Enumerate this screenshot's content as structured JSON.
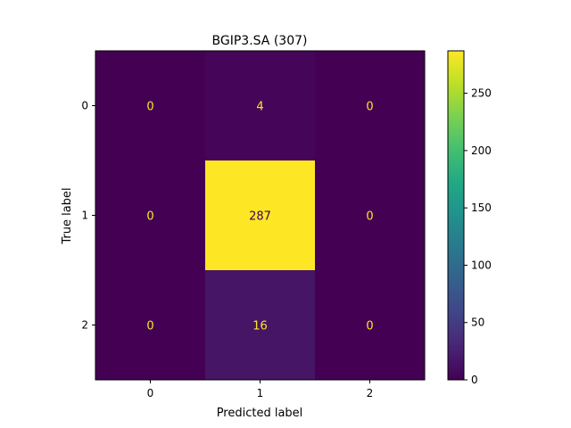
{
  "chart_data": {
    "type": "heatmap",
    "title": "BGIP3.SA (307)",
    "xlabel": "Predicted label",
    "ylabel": "True label",
    "x_categories": [
      "0",
      "1",
      "2"
    ],
    "y_categories": [
      "0",
      "1",
      "2"
    ],
    "values": [
      [
        0,
        4,
        0
      ],
      [
        0,
        287,
        0
      ],
      [
        0,
        16,
        0
      ]
    ],
    "colormap": "viridis",
    "colorbar": {
      "ticks": [
        0,
        50,
        100,
        150,
        200,
        250
      ],
      "tick_labels": [
        "0",
        "50",
        "100",
        "150",
        "200",
        "250"
      ],
      "range": [
        0,
        287
      ]
    },
    "low_text_color": "#fde725",
    "high_text_color": "#440154"
  }
}
